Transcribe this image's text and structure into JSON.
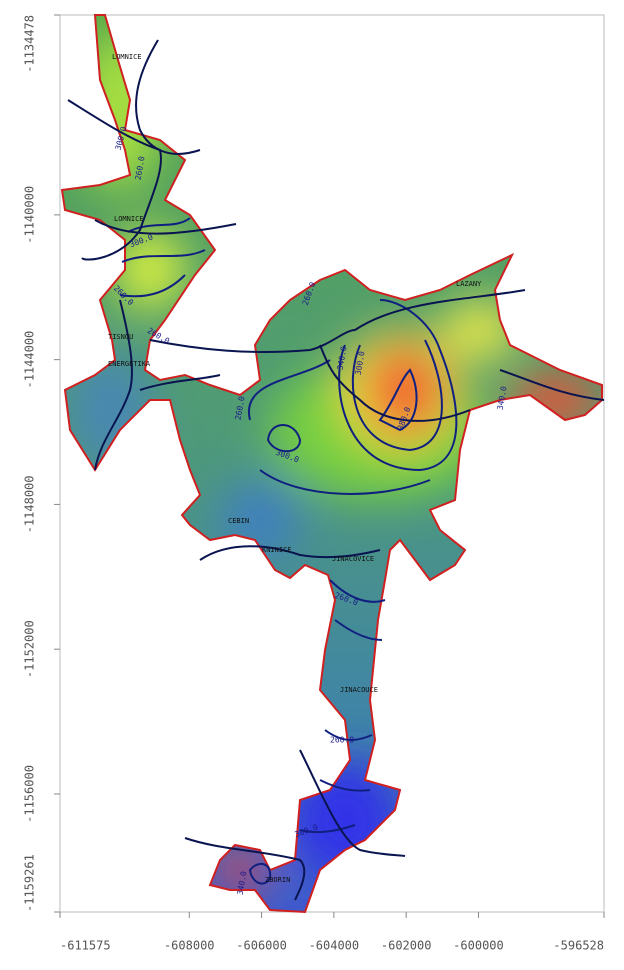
{
  "map": {
    "xlim": [
      -611575,
      -596528
    ],
    "ylim": [
      -1159261,
      -1134478
    ],
    "xticks": [
      -611575,
      -608000,
      -606000,
      -604000,
      -602000,
      -600000,
      -596528
    ],
    "yticks": [
      -1134478,
      -1140000,
      -1144000,
      -1148000,
      -1152000,
      -1156000,
      -1159261
    ],
    "places": [
      "LOMNICE",
      "LOMNICE",
      "TISNOU",
      "ENERGETIKA",
      "CEBIN",
      "KNINICE",
      "JINACOVICE",
      "JINACOUCE",
      "LAZANY",
      "ZBORIN"
    ],
    "contour_labels": [
      "300.0",
      "260.0",
      "300.0",
      "260.0",
      "260.0",
      "300.0",
      "340.0",
      "380.0",
      "300.0",
      "340.0",
      "260.0",
      "260.0",
      "260.0",
      "260.0",
      "340.0",
      "300.0"
    ]
  }
}
